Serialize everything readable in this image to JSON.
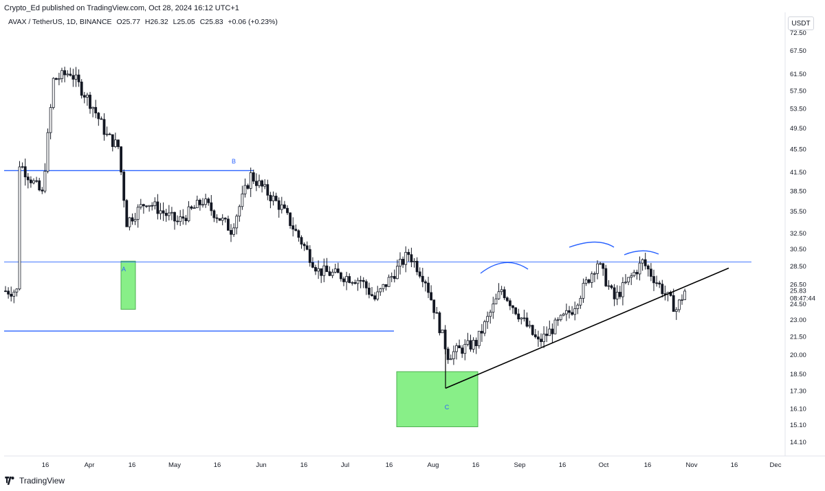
{
  "header": {
    "publisher": "Crypto_Ed published on TradingView.com, Oct 28, 2024 16:12 UTC+1"
  },
  "legend": {
    "symbol": "AVAX / TetherUS, 1D, BINANCE",
    "open": "O25.77",
    "high": "H26.32",
    "low": "L25.05",
    "close": "C25.83",
    "change": "+0.06 (+0.23%)"
  },
  "currency": "USDT",
  "footer": {
    "brand": "TradingView"
  },
  "colors": {
    "candle": "#131722",
    "blue_line": "#2962ff",
    "green_zone": "#7bed7b",
    "label_blue": "#2962ff"
  },
  "chart_data": {
    "type": "candlestick",
    "symbol": "AVAX / TetherUS",
    "interval": "1D",
    "y_axis_scale": "log",
    "y_ticks": [
      "72.50",
      "67.50",
      "61.50",
      "57.50",
      "53.50",
      "49.50",
      "45.50",
      "41.50",
      "38.50",
      "35.50",
      "32.50",
      "30.50",
      "28.50",
      "26.50",
      "24.50",
      "23.00",
      "21.50",
      "20.00",
      "18.50",
      "17.30",
      "16.10",
      "15.10",
      "14.10"
    ],
    "last_price": "25.83",
    "countdown": "08:47:44",
    "x_ticks": [
      "16",
      "Apr",
      "16",
      "May",
      "16",
      "Jun",
      "16",
      "Jul",
      "16",
      "Aug",
      "16",
      "Sep",
      "16",
      "Oct",
      "16",
      "Nov",
      "16",
      "Dec"
    ],
    "annotations": {
      "labels": [
        "A",
        "B",
        "C"
      ],
      "horizontal_levels": [
        41.8,
        29.0,
        22.0
      ],
      "trendline": {
        "from_price": 17.5,
        "to_price": 28.3
      },
      "zones": [
        {
          "label": "A",
          "low": 24.0,
          "high": 29.1
        },
        {
          "label": "C",
          "low": 15.0,
          "high": 18.7
        }
      ]
    },
    "series_keypoints": [
      {
        "date": "Mar 06",
        "price": 43
      },
      {
        "date": "Mar 14",
        "price": 38
      },
      {
        "date": "Mar 18",
        "price": 60
      },
      {
        "date": "Mar 24",
        "price": 62
      },
      {
        "date": "Apr 01",
        "price": 54
      },
      {
        "date": "Apr 06",
        "price": 48
      },
      {
        "date": "Apr 10",
        "price": 46
      },
      {
        "date": "Apr 13",
        "price": 34
      },
      {
        "date": "Apr 20",
        "price": 37
      },
      {
        "date": "May 01",
        "price": 34
      },
      {
        "date": "May 10",
        "price": 37
      },
      {
        "date": "May 20",
        "price": 33
      },
      {
        "date": "May 27",
        "price": 41
      },
      {
        "date": "Jun 07",
        "price": 36
      },
      {
        "date": "Jun 20",
        "price": 28
      },
      {
        "date": "Jul 05",
        "price": 27
      },
      {
        "date": "Jul 10",
        "price": 25
      },
      {
        "date": "Jul 22",
        "price": 30
      },
      {
        "date": "Jul 28",
        "price": 27
      },
      {
        "date": "Aug 05",
        "price": 20
      },
      {
        "date": "Aug 15",
        "price": 21
      },
      {
        "date": "Aug 24",
        "price": 26
      },
      {
        "date": "Sep 06",
        "price": 21
      },
      {
        "date": "Sep 18",
        "price": 24
      },
      {
        "date": "Sep 27",
        "price": 29
      },
      {
        "date": "Oct 03",
        "price": 25
      },
      {
        "date": "Oct 13",
        "price": 29
      },
      {
        "date": "Oct 25",
        "price": 24
      },
      {
        "date": "Oct 28",
        "price": 25.83
      }
    ]
  }
}
